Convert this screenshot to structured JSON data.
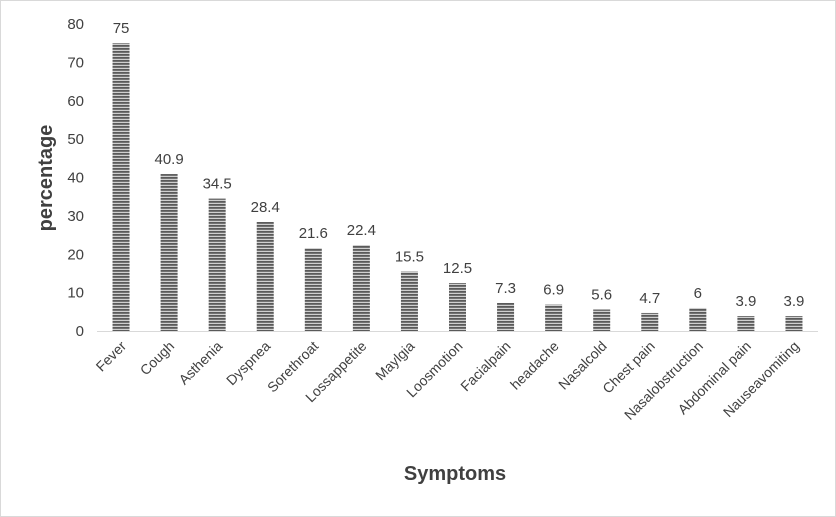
{
  "chart_data": {
    "type": "bar",
    "title": "",
    "xlabel": "Symptoms",
    "ylabel": "percentage",
    "ylim": [
      0,
      80
    ],
    "yticks": [
      0,
      10,
      20,
      30,
      40,
      50,
      60,
      70,
      80
    ],
    "grid": false,
    "legend": "none",
    "bar_color": "#595959",
    "bar_stripe_color": "#d0d0d0",
    "categories": [
      "Fever",
      "Cough",
      "Asthenia",
      "Dyspnea",
      "Sorethroat",
      "Lossappetite",
      "Maylgia",
      "Loosmotion",
      "Facialpain",
      "headache",
      "Nasalcold",
      "Chest pain",
      "Nasalobstruction",
      "Abdominal pain",
      "Nauseavomiting"
    ],
    "values": [
      75,
      40.9,
      34.5,
      28.4,
      21.6,
      22.4,
      15.5,
      12.5,
      7.3,
      6.9,
      5.6,
      4.7,
      6,
      3.9,
      3.9
    ],
    "data_labels": [
      "75",
      "40.9",
      "34.5",
      "28.4",
      "21.6",
      "22.4",
      "15.5",
      "12.5",
      "7.3",
      "6.9",
      "5.6",
      "4.7",
      "6",
      "3.9",
      "3.9"
    ]
  }
}
